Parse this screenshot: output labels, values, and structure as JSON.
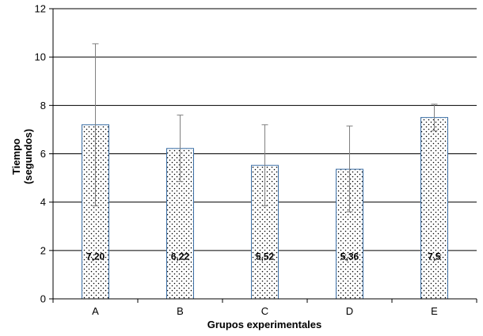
{
  "chart_data": {
    "type": "bar",
    "title": "",
    "xlabel": "Grupos experimentales",
    "ylabel_line1": "Tiempo",
    "ylabel_line2": "(segundos)",
    "categories": [
      "A",
      "B",
      "C",
      "D",
      "E"
    ],
    "values": [
      7.2,
      6.22,
      5.52,
      5.36,
      7.5
    ],
    "data_labels": [
      "7,20",
      "6,22",
      "5,52",
      "5,36",
      "7,5"
    ],
    "error_bars": [
      {
        "low": 3.85,
        "high": 10.55
      },
      {
        "low": 4.85,
        "high": 7.6
      },
      {
        "low": 3.85,
        "high": 7.2
      },
      {
        "low": 3.6,
        "high": 7.15
      },
      {
        "low": 6.95,
        "high": 8.05
      }
    ],
    "ylim": [
      0,
      12
    ],
    "yticks": [
      0,
      2,
      4,
      6,
      8,
      10,
      12
    ],
    "grid": true,
    "legend": "none",
    "bar_pattern": "dotted",
    "colors": {
      "bar_border": "#3a6ea5",
      "bar_fill": "#ffffff",
      "dots": "#000000",
      "grid": "#000000",
      "error_bar": "#808080"
    }
  }
}
